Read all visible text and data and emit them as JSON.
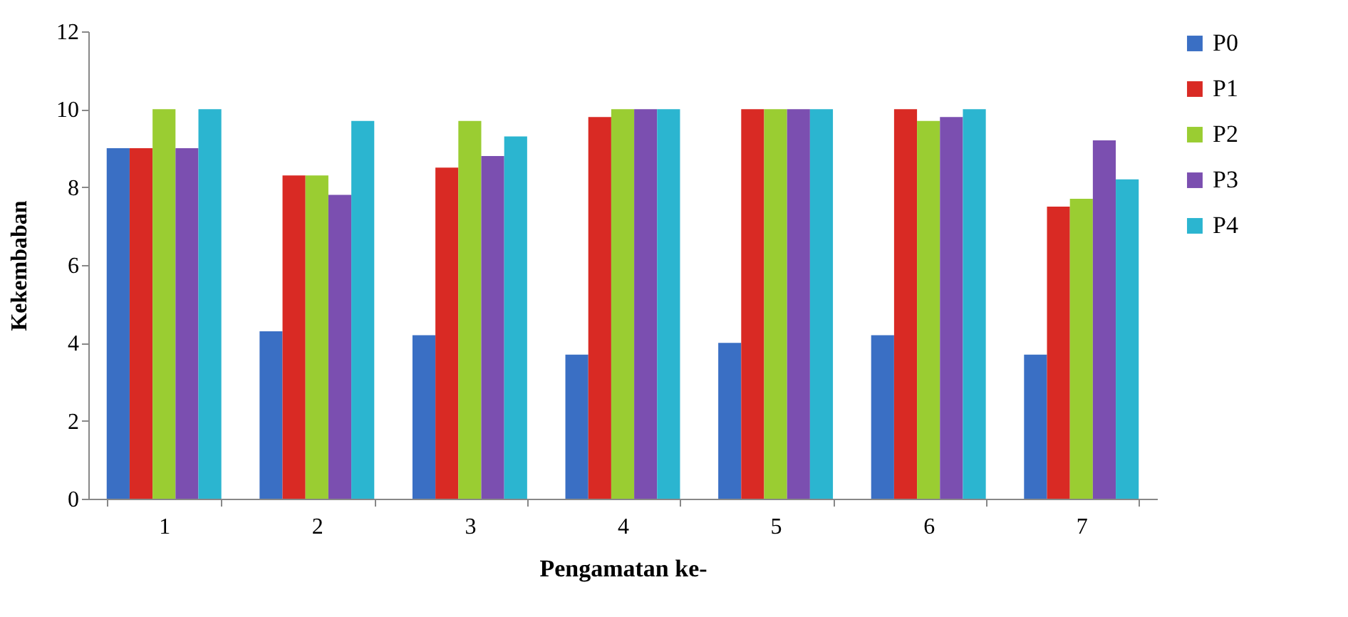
{
  "chart_data": {
    "type": "bar",
    "xlabel": "Pengamatan ke-",
    "ylabel": "Kekembaban",
    "categories": [
      "1",
      "2",
      "3",
      "4",
      "5",
      "6",
      "7"
    ],
    "series": [
      {
        "name": "P0",
        "color": "#3a6fc4",
        "values": [
          9.0,
          4.3,
          4.2,
          3.7,
          4.0,
          4.2,
          3.7
        ]
      },
      {
        "name": "P1",
        "color": "#d92a24",
        "values": [
          9.0,
          8.3,
          8.5,
          9.8,
          10,
          10,
          7.5
        ]
      },
      {
        "name": "P2",
        "color": "#9acd32",
        "values": [
          10,
          8.3,
          9.7,
          10,
          10,
          9.7,
          7.7
        ]
      },
      {
        "name": "P3",
        "color": "#7b4fb0",
        "values": [
          9.0,
          7.8,
          8.8,
          10,
          10,
          9.8,
          9.2
        ]
      },
      {
        "name": "P4",
        "color": "#2bb5d0",
        "values": [
          10,
          9.7,
          9.3,
          10,
          10,
          10,
          8.2
        ]
      }
    ],
    "ylim": [
      0,
      12
    ],
    "yticks": [
      0,
      2,
      4,
      6,
      8,
      10,
      12
    ],
    "legend": "right",
    "grid": false
  }
}
